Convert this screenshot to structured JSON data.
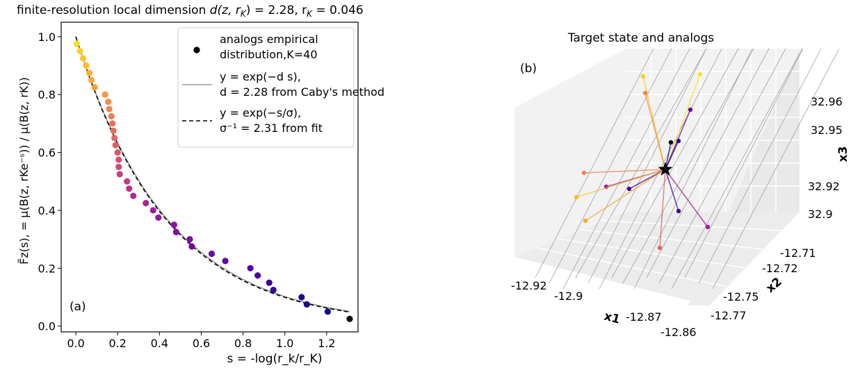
{
  "chart_data": [
    {
      "type": "scatter",
      "title": "finite-resolution local dimension d(z, r_K) = 2.28, r_K = 0.046",
      "title_parts": {
        "prefix": "finite-resolution local dimension ",
        "formula": "d(z, r",
        "formula_sub": "K",
        "formula_mid": ") = 2.28, r",
        "formula_sub2": "K",
        "formula_end": " = 0.046"
      },
      "panel_label": "(a)",
      "xlabel": "s = -log(r_k/r_K)",
      "ylabel": "F̃_z(s), = μ(B(z, r_K e^{-s})) / μ(B(z, r_K))",
      "ylabel_text": "F̃z(s), = μ(B(z, rKe⁻ˢ)) / μ(B(z, rK))",
      "xlim": [
        -0.07,
        1.35
      ],
      "ylim": [
        -0.02,
        1.05
      ],
      "xticks": [
        0.0,
        0.2,
        0.4,
        0.6,
        0.8,
        1.0,
        1.2
      ],
      "xtick_labels": [
        "0.0",
        "0.2",
        "0.4",
        "0.6",
        "0.8",
        "1.0",
        "1.2"
      ],
      "yticks": [
        0.0,
        0.2,
        0.4,
        0.6,
        0.8,
        1.0
      ],
      "ytick_labels": [
        "0.0",
        "0.2",
        "0.4",
        "0.6",
        "0.8",
        "1.0"
      ],
      "legend_position": "top-right",
      "legend": [
        {
          "marker": "dot",
          "lines": [
            "analogs empirical",
            " distribution,K=40"
          ]
        },
        {
          "marker": "solid",
          "color": "#9a9a9a",
          "lines": [
            "y = exp(−d s),",
            "d = 2.28 from Caby's method"
          ]
        },
        {
          "marker": "dashed",
          "color": "#000000",
          "lines": [
            "y = exp(−s/σ),",
            "σ⁻¹ = 2.31 from fit"
          ]
        }
      ],
      "curves": {
        "caby_d": 2.28,
        "fit_sigma_inv": 2.31,
        "x_range": [
          0.0,
          1.31
        ]
      },
      "colormap": "plasma",
      "points": [
        {
          "x": 0.005,
          "y": 0.975
        },
        {
          "x": 0.02,
          "y": 0.95
        },
        {
          "x": 0.035,
          "y": 0.925
        },
        {
          "x": 0.05,
          "y": 0.9
        },
        {
          "x": 0.065,
          "y": 0.875
        },
        {
          "x": 0.075,
          "y": 0.85
        },
        {
          "x": 0.09,
          "y": 0.825
        },
        {
          "x": 0.14,
          "y": 0.8
        },
        {
          "x": 0.155,
          "y": 0.775
        },
        {
          "x": 0.16,
          "y": 0.75
        },
        {
          "x": 0.17,
          "y": 0.725
        },
        {
          "x": 0.175,
          "y": 0.7
        },
        {
          "x": 0.18,
          "y": 0.675
        },
        {
          "x": 0.185,
          "y": 0.65
        },
        {
          "x": 0.19,
          "y": 0.625
        },
        {
          "x": 0.2,
          "y": 0.6
        },
        {
          "x": 0.205,
          "y": 0.575
        },
        {
          "x": 0.205,
          "y": 0.55
        },
        {
          "x": 0.21,
          "y": 0.525
        },
        {
          "x": 0.245,
          "y": 0.5
        },
        {
          "x": 0.255,
          "y": 0.475
        },
        {
          "x": 0.275,
          "y": 0.45
        },
        {
          "x": 0.335,
          "y": 0.425
        },
        {
          "x": 0.37,
          "y": 0.4
        },
        {
          "x": 0.395,
          "y": 0.375
        },
        {
          "x": 0.47,
          "y": 0.35
        },
        {
          "x": 0.48,
          "y": 0.325
        },
        {
          "x": 0.545,
          "y": 0.3
        },
        {
          "x": 0.555,
          "y": 0.275
        },
        {
          "x": 0.65,
          "y": 0.25
        },
        {
          "x": 0.715,
          "y": 0.225
        },
        {
          "x": 0.835,
          "y": 0.2
        },
        {
          "x": 0.87,
          "y": 0.175
        },
        {
          "x": 0.925,
          "y": 0.15
        },
        {
          "x": 0.945,
          "y": 0.125
        },
        {
          "x": 1.08,
          "y": 0.1
        },
        {
          "x": 1.105,
          "y": 0.075
        },
        {
          "x": 1.205,
          "y": 0.05
        },
        {
          "x": 1.31,
          "y": 0.025
        }
      ]
    },
    {
      "type": "scatter",
      "title": "Target state and analogs",
      "panel_label": "(b)",
      "xlabel": "x1",
      "ylabel": "x2",
      "zlabel": "x3",
      "x_tick_labels": [
        "-12.92",
        "-12.9",
        "-12.87",
        "-12.86"
      ],
      "y_tick_labels": [
        "-12.71",
        "-12.72",
        "-12.75",
        "-12.77"
      ],
      "z_tick_labels": [
        "32.96",
        "32.95",
        "32.92",
        "32.9"
      ],
      "target_marker": "star",
      "colormap": "plasma"
    }
  ]
}
